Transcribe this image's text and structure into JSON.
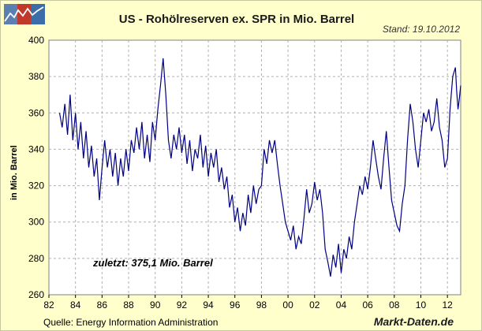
{
  "header": {
    "title": "US - Rohölreserven ex. SPR in Mio. Barrel",
    "stand": "Stand: 19.10.2012"
  },
  "footer": {
    "source": "Quelle: Energy Information Administration",
    "brand": "Markt-Daten.de"
  },
  "logo": {
    "name": "markt-daten-logo",
    "colors": [
      "#5a7fb0",
      "#c0392b",
      "#3b6ea8"
    ]
  },
  "colors": {
    "background": "#ffffcc",
    "plot_background": "#ffffff",
    "line": "#000080",
    "grid": "#b0b0b0"
  },
  "chart_data": {
    "type": "line",
    "title": "US - Rohölreserven ex. SPR in Mio. Barrel",
    "xlabel": "",
    "ylabel": "in Mio. Barrel",
    "xlim": [
      1982,
      2013
    ],
    "ylim": [
      260,
      400
    ],
    "x_ticks": [
      1982,
      1984,
      1986,
      1988,
      1990,
      1992,
      1994,
      1996,
      1998,
      2000,
      2002,
      2004,
      2006,
      2008,
      2010,
      2012
    ],
    "x_tick_labels": [
      "82",
      "84",
      "86",
      "88",
      "90",
      "92",
      "94",
      "96",
      "98",
      "00",
      "02",
      "04",
      "06",
      "08",
      "10",
      "12"
    ],
    "y_ticks": [
      260,
      280,
      300,
      320,
      340,
      360,
      380,
      400
    ],
    "grid": true,
    "annotation": "zuletzt: 375,1 Mio. Barrel",
    "series": [
      {
        "color": "#000080",
        "points": [
          [
            1982.8,
            360
          ],
          [
            1983.0,
            352
          ],
          [
            1983.2,
            365
          ],
          [
            1983.4,
            348
          ],
          [
            1983.6,
            370
          ],
          [
            1983.8,
            345
          ],
          [
            1984.0,
            360
          ],
          [
            1984.2,
            340
          ],
          [
            1984.4,
            355
          ],
          [
            1984.6,
            335
          ],
          [
            1984.8,
            350
          ],
          [
            1985.0,
            330
          ],
          [
            1985.2,
            342
          ],
          [
            1985.4,
            325
          ],
          [
            1985.6,
            335
          ],
          [
            1985.8,
            312
          ],
          [
            1986.0,
            330
          ],
          [
            1986.2,
            345
          ],
          [
            1986.4,
            330
          ],
          [
            1986.6,
            340
          ],
          [
            1986.8,
            325
          ],
          [
            1987.0,
            338
          ],
          [
            1987.2,
            320
          ],
          [
            1987.4,
            335
          ],
          [
            1987.6,
            325
          ],
          [
            1987.8,
            340
          ],
          [
            1988.0,
            328
          ],
          [
            1988.2,
            345
          ],
          [
            1988.4,
            338
          ],
          [
            1988.6,
            352
          ],
          [
            1988.8,
            340
          ],
          [
            1989.0,
            355
          ],
          [
            1989.2,
            335
          ],
          [
            1989.4,
            348
          ],
          [
            1989.6,
            333
          ],
          [
            1989.8,
            355
          ],
          [
            1990.0,
            345
          ],
          [
            1990.2,
            362
          ],
          [
            1990.4,
            375
          ],
          [
            1990.6,
            390
          ],
          [
            1990.8,
            370
          ],
          [
            1991.0,
            345
          ],
          [
            1991.2,
            335
          ],
          [
            1991.4,
            348
          ],
          [
            1991.6,
            340
          ],
          [
            1991.8,
            352
          ],
          [
            1992.0,
            338
          ],
          [
            1992.2,
            348
          ],
          [
            1992.4,
            332
          ],
          [
            1992.6,
            345
          ],
          [
            1992.8,
            328
          ],
          [
            1993.0,
            340
          ],
          [
            1993.2,
            335
          ],
          [
            1993.4,
            348
          ],
          [
            1993.6,
            330
          ],
          [
            1993.8,
            342
          ],
          [
            1994.0,
            325
          ],
          [
            1994.2,
            338
          ],
          [
            1994.4,
            330
          ],
          [
            1994.6,
            340
          ],
          [
            1994.8,
            322
          ],
          [
            1995.0,
            330
          ],
          [
            1995.2,
            318
          ],
          [
            1995.4,
            325
          ],
          [
            1995.6,
            308
          ],
          [
            1995.8,
            315
          ],
          [
            1996.0,
            300
          ],
          [
            1996.2,
            308
          ],
          [
            1996.4,
            295
          ],
          [
            1996.6,
            305
          ],
          [
            1996.8,
            298
          ],
          [
            1997.0,
            315
          ],
          [
            1997.2,
            305
          ],
          [
            1997.4,
            320
          ],
          [
            1997.6,
            310
          ],
          [
            1997.8,
            318
          ],
          [
            1998.0,
            320
          ],
          [
            1998.2,
            340
          ],
          [
            1998.4,
            332
          ],
          [
            1998.6,
            345
          ],
          [
            1998.8,
            338
          ],
          [
            1999.0,
            345
          ],
          [
            1999.2,
            332
          ],
          [
            1999.4,
            320
          ],
          [
            1999.6,
            310
          ],
          [
            1999.8,
            300
          ],
          [
            2000.0,
            295
          ],
          [
            2000.2,
            290
          ],
          [
            2000.4,
            298
          ],
          [
            2000.6,
            285
          ],
          [
            2000.8,
            292
          ],
          [
            2001.0,
            288
          ],
          [
            2001.2,
            302
          ],
          [
            2001.4,
            318
          ],
          [
            2001.6,
            305
          ],
          [
            2001.8,
            310
          ],
          [
            2002.0,
            322
          ],
          [
            2002.2,
            312
          ],
          [
            2002.4,
            318
          ],
          [
            2002.6,
            305
          ],
          [
            2002.8,
            285
          ],
          [
            2003.0,
            278
          ],
          [
            2003.2,
            270
          ],
          [
            2003.4,
            282
          ],
          [
            2003.6,
            275
          ],
          [
            2003.8,
            288
          ],
          [
            2004.0,
            272
          ],
          [
            2004.2,
            285
          ],
          [
            2004.4,
            280
          ],
          [
            2004.6,
            292
          ],
          [
            2004.8,
            285
          ],
          [
            2005.0,
            300
          ],
          [
            2005.2,
            310
          ],
          [
            2005.4,
            320
          ],
          [
            2005.6,
            315
          ],
          [
            2005.8,
            325
          ],
          [
            2006.0,
            318
          ],
          [
            2006.2,
            330
          ],
          [
            2006.4,
            345
          ],
          [
            2006.6,
            335
          ],
          [
            2006.8,
            325
          ],
          [
            2007.0,
            318
          ],
          [
            2007.2,
            335
          ],
          [
            2007.4,
            350
          ],
          [
            2007.6,
            330
          ],
          [
            2007.8,
            312
          ],
          [
            2008.0,
            305
          ],
          [
            2008.2,
            298
          ],
          [
            2008.4,
            295
          ],
          [
            2008.6,
            310
          ],
          [
            2008.8,
            320
          ],
          [
            2009.0,
            345
          ],
          [
            2009.2,
            365
          ],
          [
            2009.4,
            355
          ],
          [
            2009.6,
            340
          ],
          [
            2009.8,
            330
          ],
          [
            2010.0,
            345
          ],
          [
            2010.2,
            360
          ],
          [
            2010.4,
            355
          ],
          [
            2010.6,
            362
          ],
          [
            2010.8,
            350
          ],
          [
            2011.0,
            355
          ],
          [
            2011.2,
            368
          ],
          [
            2011.4,
            352
          ],
          [
            2011.6,
            345
          ],
          [
            2011.8,
            330
          ],
          [
            2012.0,
            335
          ],
          [
            2012.2,
            362
          ],
          [
            2012.4,
            380
          ],
          [
            2012.6,
            385
          ],
          [
            2012.7,
            372
          ],
          [
            2012.8,
            362
          ],
          [
            2012.9,
            368
          ],
          [
            2013.0,
            375.1
          ]
        ]
      }
    ]
  }
}
